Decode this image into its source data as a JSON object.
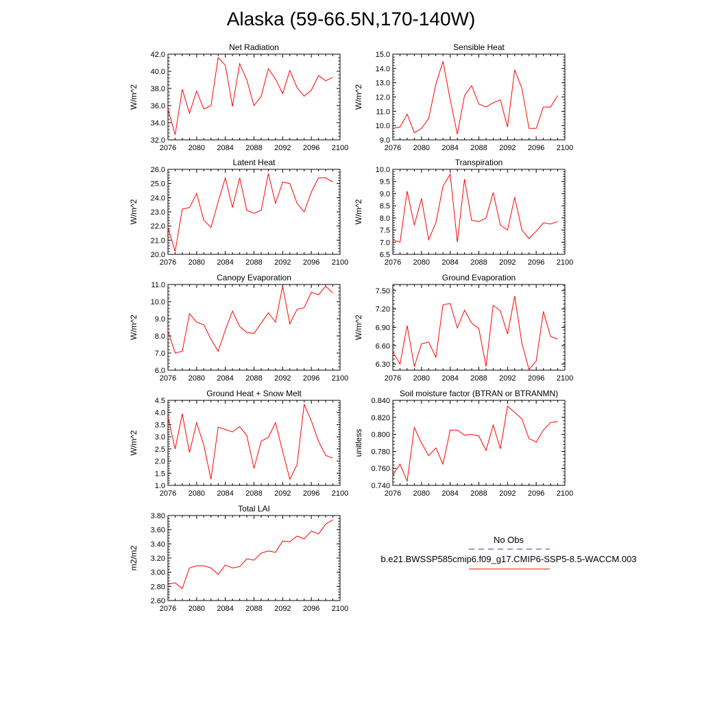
{
  "title": "Alaska (59-66.5N,170-140W)",
  "chart_data": [
    {
      "type": "line",
      "title": "Net Radiation",
      "ylabel": "W/m^2",
      "xlim": [
        2076,
        2100
      ],
      "ylim": [
        32,
        42
      ],
      "xticks": [
        2076,
        2080,
        2084,
        2088,
        2092,
        2096,
        2100
      ],
      "yticks": [
        "32.0",
        "34.0",
        "36.0",
        "38.0",
        "40.0",
        "42.0"
      ],
      "x": [
        2076,
        2077,
        2078,
        2079,
        2080,
        2081,
        2082,
        2083,
        2084,
        2085,
        2086,
        2087,
        2088,
        2089,
        2090,
        2091,
        2092,
        2093,
        2094,
        2095,
        2096,
        2097,
        2098,
        2099
      ],
      "series": [
        {
          "color": "#ff0000",
          "values": [
            35.6,
            32.6,
            37.9,
            35.1,
            37.7,
            35.6,
            36.0,
            41.6,
            40.7,
            35.9,
            40.9,
            39.0,
            36.0,
            37.1,
            40.3,
            39.1,
            37.4,
            40.1,
            38.1,
            37.1,
            37.8,
            39.5,
            38.9,
            39.3
          ]
        }
      ]
    },
    {
      "type": "line",
      "title": "Sensible Heat",
      "ylabel": "W/m^2",
      "xlim": [
        2076,
        2100
      ],
      "ylim": [
        9,
        15
      ],
      "xticks": [
        2076,
        2080,
        2084,
        2088,
        2092,
        2096,
        2100
      ],
      "yticks": [
        "9.0",
        "10.0",
        "11.0",
        "12.0",
        "13.0",
        "14.0",
        "15.0"
      ],
      "x": [
        2076,
        2077,
        2078,
        2079,
        2080,
        2081,
        2082,
        2083,
        2084,
        2085,
        2086,
        2087,
        2088,
        2089,
        2090,
        2091,
        2092,
        2093,
        2094,
        2095,
        2096,
        2097,
        2098,
        2099
      ],
      "series": [
        {
          "color": "#ff0000",
          "values": [
            9.8,
            9.9,
            10.8,
            9.5,
            9.8,
            10.5,
            12.9,
            14.5,
            11.8,
            9.4,
            12.1,
            12.8,
            11.5,
            11.3,
            11.6,
            11.8,
            9.9,
            13.9,
            12.6,
            9.8,
            9.8,
            11.3,
            11.3,
            12.1
          ]
        }
      ]
    },
    {
      "type": "line",
      "title": "Latent Heat",
      "ylabel": "W/m^2",
      "xlim": [
        2076,
        2100
      ],
      "ylim": [
        20,
        26
      ],
      "xticks": [
        2076,
        2080,
        2084,
        2088,
        2092,
        2096,
        2100
      ],
      "yticks": [
        "20.0",
        "21.0",
        "22.0",
        "23.0",
        "24.0",
        "25.0",
        "26.0"
      ],
      "x": [
        2076,
        2077,
        2078,
        2079,
        2080,
        2081,
        2082,
        2083,
        2084,
        2085,
        2086,
        2087,
        2088,
        2089,
        2090,
        2091,
        2092,
        2093,
        2094,
        2095,
        2096,
        2097,
        2098,
        2099
      ],
      "series": [
        {
          "color": "#ff0000",
          "values": [
            21.9,
            20.2,
            23.2,
            23.3,
            24.3,
            22.4,
            21.9,
            23.7,
            25.4,
            23.3,
            25.4,
            23.1,
            22.9,
            23.1,
            25.7,
            23.6,
            25.1,
            25.0,
            23.6,
            23.0,
            24.4,
            25.4,
            25.4,
            25.1
          ]
        }
      ]
    },
    {
      "type": "line",
      "title": "Transpiration",
      "ylabel": "W/m^2",
      "xlim": [
        2076,
        2100
      ],
      "ylim": [
        6.5,
        10
      ],
      "xticks": [
        2076,
        2080,
        2084,
        2088,
        2092,
        2096,
        2100
      ],
      "yticks": [
        "6.5",
        "7.0",
        "7.5",
        "8.0",
        "8.5",
        "9.0",
        "9.5",
        "10.0"
      ],
      "x": [
        2076,
        2077,
        2078,
        2079,
        2080,
        2081,
        2082,
        2083,
        2084,
        2085,
        2086,
        2087,
        2088,
        2089,
        2090,
        2091,
        2092,
        2093,
        2094,
        2095,
        2096,
        2097,
        2098,
        2099
      ],
      "series": [
        {
          "color": "#ff0000",
          "values": [
            7.1,
            7.0,
            9.1,
            7.7,
            8.8,
            7.1,
            7.8,
            9.3,
            9.8,
            7.0,
            9.6,
            7.9,
            7.85,
            8.0,
            9.05,
            7.7,
            7.5,
            8.85,
            7.5,
            7.15,
            7.45,
            7.8,
            7.75,
            7.85
          ]
        }
      ]
    },
    {
      "type": "line",
      "title": "Canopy Evaporation",
      "ylabel": "W/m^2",
      "xlim": [
        2076,
        2100
      ],
      "ylim": [
        6,
        11
      ],
      "xticks": [
        2076,
        2080,
        2084,
        2088,
        2092,
        2096,
        2100
      ],
      "yticks": [
        "6.0",
        "7.0",
        "8.0",
        "9.0",
        "10.0",
        "11.0"
      ],
      "x": [
        2076,
        2077,
        2078,
        2079,
        2080,
        2081,
        2082,
        2083,
        2084,
        2085,
        2086,
        2087,
        2088,
        2089,
        2090,
        2091,
        2092,
        2093,
        2094,
        2095,
        2096,
        2097,
        2098,
        2099
      ],
      "series": [
        {
          "color": "#ff0000",
          "values": [
            8.3,
            7.0,
            7.1,
            9.3,
            8.8,
            8.65,
            7.8,
            7.1,
            8.35,
            9.45,
            8.55,
            8.2,
            8.15,
            8.75,
            9.35,
            8.8,
            10.9,
            8.7,
            9.55,
            9.65,
            10.55,
            10.4,
            10.9,
            10.5
          ]
        }
      ]
    },
    {
      "type": "line",
      "title": "Ground Evaporation",
      "ylabel": "W/m^2",
      "xlim": [
        2076,
        2100
      ],
      "ylim": [
        6.2,
        7.6
      ],
      "xticks": [
        2076,
        2080,
        2084,
        2088,
        2092,
        2096,
        2100
      ],
      "yticks": [
        "6.30",
        "6.60",
        "6.90",
        "7.20",
        "7.50"
      ],
      "x": [
        2076,
        2077,
        2078,
        2079,
        2080,
        2081,
        2082,
        2083,
        2084,
        2085,
        2086,
        2087,
        2088,
        2089,
        2090,
        2091,
        2092,
        2093,
        2094,
        2095,
        2096,
        2097,
        2098,
        2099
      ],
      "series": [
        {
          "color": "#ff0000",
          "values": [
            6.5,
            6.3,
            6.93,
            6.26,
            6.63,
            6.66,
            6.41,
            7.27,
            7.29,
            6.89,
            7.18,
            6.97,
            6.88,
            6.26,
            7.26,
            7.17,
            6.79,
            7.41,
            6.64,
            6.21,
            6.35,
            7.16,
            6.75,
            6.71
          ]
        }
      ]
    },
    {
      "type": "line",
      "title": "Ground Heat + Snow Melt",
      "ylabel": "W/m^2",
      "xlim": [
        2076,
        2100
      ],
      "ylim": [
        1,
        4.5
      ],
      "xticks": [
        2076,
        2080,
        2084,
        2088,
        2092,
        2096,
        2100
      ],
      "yticks": [
        "1.0",
        "1.5",
        "2.0",
        "2.5",
        "3.0",
        "3.5",
        "4.0",
        "4.5"
      ],
      "x": [
        2076,
        2077,
        2078,
        2079,
        2080,
        2081,
        2082,
        2083,
        2084,
        2085,
        2086,
        2087,
        2088,
        2089,
        2090,
        2091,
        2092,
        2093,
        2094,
        2095,
        2096,
        2097,
        2098,
        2099
      ],
      "series": [
        {
          "color": "#ff0000",
          "values": [
            3.8,
            2.5,
            3.95,
            2.35,
            3.58,
            2.65,
            1.25,
            3.4,
            3.3,
            3.2,
            3.42,
            3.05,
            1.7,
            2.82,
            2.98,
            3.58,
            2.4,
            1.25,
            1.85,
            4.33,
            3.65,
            2.82,
            2.23,
            2.12
          ]
        }
      ]
    },
    {
      "type": "line",
      "title": "Soil moisture factor (BTRAN or BTRANMN)",
      "ylabel": "unitless",
      "xlim": [
        2076,
        2100
      ],
      "ylim": [
        0.74,
        0.84
      ],
      "xticks": [
        2076,
        2080,
        2084,
        2088,
        2092,
        2096,
        2100
      ],
      "yticks": [
        "0.740",
        "0.760",
        "0.780",
        "0.800",
        "0.820",
        "0.840"
      ],
      "x": [
        2076,
        2077,
        2078,
        2079,
        2080,
        2081,
        2082,
        2083,
        2084,
        2085,
        2086,
        2087,
        2088,
        2089,
        2090,
        2091,
        2092,
        2093,
        2094,
        2095,
        2096,
        2097,
        2098,
        2099
      ],
      "series": [
        {
          "color": "#ff0000",
          "values": [
            0.752,
            0.765,
            0.745,
            0.808,
            0.79,
            0.775,
            0.784,
            0.765,
            0.805,
            0.805,
            0.799,
            0.8,
            0.798,
            0.781,
            0.811,
            0.783,
            0.833,
            0.826,
            0.818,
            0.795,
            0.791,
            0.805,
            0.814,
            0.815
          ]
        }
      ]
    },
    {
      "type": "line",
      "title": "Total LAI",
      "ylabel": "m2/m2",
      "xlim": [
        2076,
        2100
      ],
      "ylim": [
        2.6,
        3.8
      ],
      "xticks": [
        2076,
        2080,
        2084,
        2088,
        2092,
        2096,
        2100
      ],
      "yticks": [
        "2.60",
        "2.80",
        "3.00",
        "3.20",
        "3.40",
        "3.60",
        "3.80"
      ],
      "x": [
        2076,
        2077,
        2078,
        2079,
        2080,
        2081,
        2082,
        2083,
        2084,
        2085,
        2086,
        2087,
        2088,
        2089,
        2090,
        2091,
        2092,
        2093,
        2094,
        2095,
        2096,
        2097,
        2098,
        2099
      ],
      "series": [
        {
          "color": "#ff0000",
          "values": [
            2.83,
            2.85,
            2.77,
            3.06,
            3.09,
            3.09,
            3.06,
            2.97,
            3.1,
            3.06,
            3.08,
            3.19,
            3.17,
            3.27,
            3.3,
            3.28,
            3.44,
            3.43,
            3.51,
            3.47,
            3.58,
            3.54,
            3.68,
            3.74
          ]
        }
      ]
    }
  ],
  "legend": {
    "entries": [
      {
        "label": "No Obs",
        "color": "#3333aa",
        "style": "dashed"
      },
      {
        "label": "b.e21.BWSSP585cmip6.f09_g17.CMIP6-SSP5-8.5-WACCM.003",
        "color": "#ff0000",
        "style": "solid"
      }
    ]
  }
}
